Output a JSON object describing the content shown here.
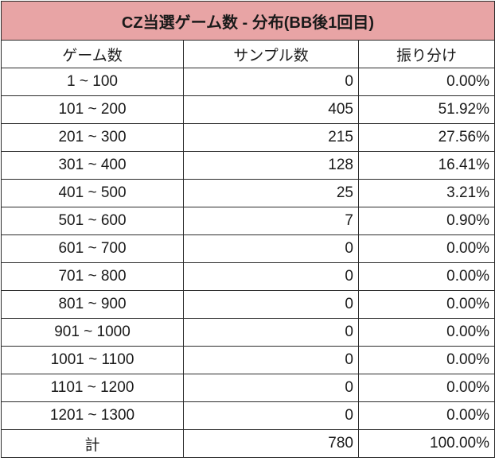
{
  "table": {
    "title": "CZ当選ゲーム数 - 分布(BB後1回目)",
    "headers": [
      "ゲーム数",
      "サンプル数",
      "振り分け"
    ],
    "rows": [
      [
        "1 ~ 100",
        "0",
        "0.00%"
      ],
      [
        "101 ~ 200",
        "405",
        "51.92%"
      ],
      [
        "201 ~ 300",
        "215",
        "27.56%"
      ],
      [
        "301 ~ 400",
        "128",
        "16.41%"
      ],
      [
        "401 ~ 500",
        "25",
        "3.21%"
      ],
      [
        "501 ~ 600",
        "7",
        "0.90%"
      ],
      [
        "601 ~ 700",
        "0",
        "0.00%"
      ],
      [
        "701 ~ 800",
        "0",
        "0.00%"
      ],
      [
        "801 ~ 900",
        "0",
        "0.00%"
      ],
      [
        "901 ~ 1000",
        "0",
        "0.00%"
      ],
      [
        "1001 ~ 1100",
        "0",
        "0.00%"
      ],
      [
        "1101 ~ 1200",
        "0",
        "0.00%"
      ],
      [
        "1201 ~ 1300",
        "0",
        "0.00%"
      ]
    ],
    "total": [
      "計",
      "780",
      "100.00%"
    ]
  },
  "colors": {
    "title_background": "#e8a4a5",
    "border": "#2b2b2b"
  }
}
